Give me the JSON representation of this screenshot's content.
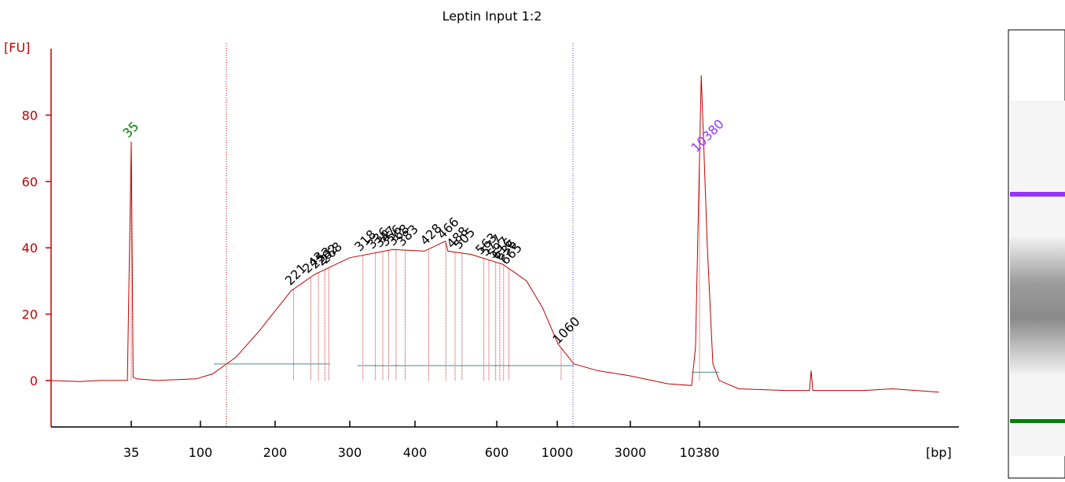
{
  "chart_data": {
    "type": "line",
    "title": "Leptin Input 1:2",
    "y_label": "[FU]",
    "x_label": "[bp]",
    "color": "#c00000",
    "ylim": [
      -14,
      100
    ],
    "yticks": [
      0,
      20,
      40,
      60,
      80
    ],
    "xticks": [
      35,
      100,
      200,
      300,
      400,
      600,
      1000,
      3000,
      10380
    ],
    "x": [
      10,
      16,
      22,
      32,
      33,
      35,
      36,
      38,
      52,
      94,
      112,
      139,
      173,
      218,
      248,
      300,
      363,
      419,
      465,
      471,
      529,
      633,
      772,
      882,
      1012,
      1285,
      1830,
      2920,
      5900,
      9000,
      9660,
      10700,
      11950,
      13200,
      14800,
      21000,
      49000,
      74700,
      77000,
      79200,
      200000,
      330000,
      765000
    ],
    "values": [
      0,
      -0.3,
      0,
      0,
      0,
      72,
      1,
      0.5,
      0,
      0.5,
      2,
      7,
      15,
      27,
      32,
      37,
      39.5,
      39,
      42,
      39,
      38,
      35,
      30,
      22,
      11,
      5,
      3,
      1.5,
      -1,
      -1.5,
      10,
      92,
      40,
      5,
      0,
      -2.5,
      -3,
      -3,
      3,
      -3,
      -3,
      -2.5,
      -3.5
    ],
    "peaks": [
      {
        "label": 35,
        "color": "#008000"
      },
      {
        "label": 221,
        "color": "#000000"
      },
      {
        "label": 243,
        "color": "#000000"
      },
      {
        "label": 253,
        "color": "#000000"
      },
      {
        "label": 262,
        "color": "#000000"
      },
      {
        "label": 268,
        "color": "#000000"
      },
      {
        "label": 318,
        "color": "#000000"
      },
      {
        "label": 336,
        "color": "#000000"
      },
      {
        "label": 347,
        "color": "#000000"
      },
      {
        "label": 356,
        "color": "#000000"
      },
      {
        "label": 368,
        "color": "#000000"
      },
      {
        "label": 383,
        "color": "#000000"
      },
      {
        "label": 428,
        "color": "#000000"
      },
      {
        "label": 466,
        "color": "#000000"
      },
      {
        "label": 488,
        "color": "#000000"
      },
      {
        "label": 505,
        "color": "#000000"
      },
      {
        "label": 563,
        "color": "#000000"
      },
      {
        "label": 577,
        "color": "#000000"
      },
      {
        "label": 597,
        "color": "#000000"
      },
      {
        "label": 616,
        "color": "#000000"
      },
      {
        "label": 636,
        "color": "#000000"
      },
      {
        "label": 665,
        "color": "#000000"
      },
      {
        "label": 1060,
        "color": "#000000"
      },
      {
        "label": 10380,
        "color": "#9933ff"
      }
    ]
  }
}
